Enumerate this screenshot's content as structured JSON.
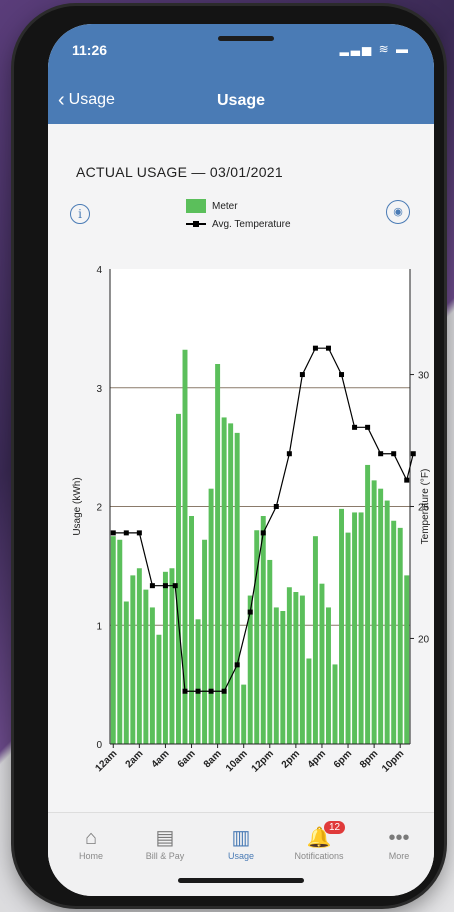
{
  "status": {
    "time": "11:26",
    "icons": "signal wifi battery"
  },
  "nav": {
    "back_label": "Usage",
    "title": "Usage"
  },
  "header": {
    "title": "ACTUAL USAGE — 03/01/2021"
  },
  "chart_data": {
    "type": "bar",
    "ylabel": "Usage (kWh)",
    "y2label": "Temperature (°F)",
    "ylim": [
      0,
      4
    ],
    "y2lim": [
      16,
      34
    ],
    "yticks": [
      0,
      1,
      2,
      3,
      4
    ],
    "y2ticks": [
      20,
      25,
      30
    ],
    "x_tick_labels": [
      "12am",
      "2am",
      "4am",
      "6am",
      "8am",
      "10am",
      "12pm",
      "2pm",
      "4pm",
      "6pm",
      "8pm",
      "10pm"
    ],
    "series": [
      {
        "name": "Meter",
        "type": "bar",
        "color": "#5bbf5b",
        "values": [
          1.75,
          1.72,
          1.2,
          1.42,
          1.48,
          1.3,
          1.15,
          0.92,
          1.45,
          1.48,
          2.78,
          3.32,
          1.92,
          1.05,
          1.72,
          2.15,
          3.2,
          2.75,
          2.7,
          2.62,
          0.5,
          1.25,
          1.8,
          1.92,
          1.55,
          1.15,
          1.12,
          1.32,
          1.28,
          1.25,
          0.72,
          1.75,
          1.35,
          1.15,
          0.67,
          1.98,
          1.78,
          1.95,
          1.95,
          2.35,
          2.22,
          2.15,
          2.05,
          1.88,
          1.82,
          1.42
        ]
      },
      {
        "name": "Avg. Temperature",
        "type": "line",
        "color": "#000000",
        "points": [
          [
            0,
            24
          ],
          [
            2,
            24
          ],
          [
            4,
            24
          ],
          [
            6,
            22
          ],
          [
            8,
            22
          ],
          [
            9.5,
            22
          ],
          [
            11,
            18
          ],
          [
            13,
            18
          ],
          [
            15,
            18
          ],
          [
            17,
            18
          ],
          [
            19,
            19
          ],
          [
            21,
            21
          ],
          [
            23,
            24
          ],
          [
            25,
            25
          ],
          [
            27,
            27
          ],
          [
            29,
            30
          ],
          [
            31,
            31
          ],
          [
            33,
            31
          ],
          [
            35,
            30
          ],
          [
            37,
            28
          ],
          [
            39,
            28
          ],
          [
            41,
            27
          ],
          [
            43,
            27
          ],
          [
            45,
            26
          ],
          [
            46,
            27
          ]
        ]
      }
    ],
    "legend_position": "top-center"
  },
  "tabbar": {
    "items": [
      {
        "label": "Home",
        "icon": "home-icon",
        "glyph": "⌂"
      },
      {
        "label": "Bill & Pay",
        "icon": "bill-icon",
        "glyph": "▤"
      },
      {
        "label": "Usage",
        "icon": "usage-chart-icon",
        "glyph": "▥"
      },
      {
        "label": "Notifications",
        "icon": "bell-icon",
        "glyph": "🔔",
        "badge": "12"
      },
      {
        "label": "More",
        "icon": "more-icon",
        "glyph": "•••"
      }
    ]
  }
}
